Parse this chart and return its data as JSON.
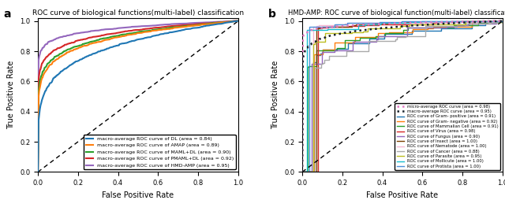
{
  "panel_a": {
    "title": "ROC curve of biological functions(multi-label) classification",
    "xlabel": "False Positive Rate",
    "ylabel": "True Positive Rate",
    "curves": [
      {
        "label": "macro-average ROC curve of DL (area = 0.84)",
        "color": "#1f77b4",
        "auc": 0.84,
        "lw": 1.5
      },
      {
        "label": "macro-average ROC curve of AMAP (area = 0.89)",
        "color": "#ff7f0e",
        "auc": 0.89,
        "lw": 1.5
      },
      {
        "label": "macro-average ROC curve of MAML+DL (area = 0.90)",
        "color": "#2ca02c",
        "auc": 0.9,
        "lw": 1.5
      },
      {
        "label": "macro-average ROC curve of PMAML+DL (area = 0.92)",
        "color": "#d62728",
        "auc": 0.92,
        "lw": 1.5
      },
      {
        "label": "macro-average ROC curve of HMD-AMP (area = 0.95)",
        "color": "#9467bd",
        "auc": 0.95,
        "lw": 1.5
      }
    ]
  },
  "panel_b": {
    "title": "HMD-AMP: ROC curve of biological function(multi-label) classification",
    "xlabel": "False Positive Rate",
    "ylabel": "True Positive Rate",
    "curves": [
      {
        "label": "micro-average ROC curve (area = 0.98)",
        "color": "#e377c2",
        "auc": 0.98,
        "style": "dotted",
        "lw": 1.8,
        "marker": true
      },
      {
        "label": "macro-average ROC curve (area = 0.95)",
        "color": "#17202a",
        "auc": 0.95,
        "style": "dotted",
        "lw": 1.8,
        "marker": true
      },
      {
        "label": "ROC curve of Gram- positive (area = 0.91)",
        "color": "#1f77b4",
        "auc": 0.91,
        "style": "step",
        "lw": 1.0
      },
      {
        "label": "ROC curve of Gram- negative (area = 0.92)",
        "color": "#ff7f0e",
        "auc": 0.92,
        "style": "step",
        "lw": 1.0
      },
      {
        "label": "ROC curve of Mammalian Cell (area = 0.91)",
        "color": "#2ca02c",
        "auc": 0.91,
        "style": "step",
        "lw": 1.0
      },
      {
        "label": "ROC curve of Virus (area = 0.98)",
        "color": "#d62728",
        "auc": 0.98,
        "style": "step",
        "lw": 1.0
      },
      {
        "label": "ROC curve of Fungus (area = 0.90)",
        "color": "#9467bd",
        "auc": 0.9,
        "style": "step",
        "lw": 1.0
      },
      {
        "label": "ROC curve of Insect (area = 1.00)",
        "color": "#7b3f00",
        "auc": 1.0,
        "style": "step",
        "lw": 1.0
      },
      {
        "label": "ROC curve of Nematode (area = 1.00)",
        "color": "#f7b6d2",
        "auc": 1.0,
        "style": "step",
        "lw": 1.0
      },
      {
        "label": "ROC curve of Cancer (area = 0.88)",
        "color": "#aaaaaa",
        "auc": 0.88,
        "style": "step",
        "lw": 1.0
      },
      {
        "label": "ROC curve of Parasite (area = 0.95)",
        "color": "#bcbd22",
        "auc": 0.95,
        "style": "step",
        "lw": 1.0
      },
      {
        "label": "ROC curve of Mollicute (area = 1.00)",
        "color": "#17becf",
        "auc": 1.0,
        "style": "step",
        "lw": 1.0
      },
      {
        "label": "ROC curve of Protista (area = 1.00)",
        "color": "#4a90d9",
        "auc": 1.0,
        "style": "step",
        "lw": 1.0
      }
    ]
  },
  "legend_fontsize_a": 4.5,
  "legend_fontsize_b": 3.8,
  "tick_fontsize": 6,
  "axis_label_fontsize": 7,
  "title_fontsize_a": 6.5,
  "title_fontsize_b": 6.0
}
